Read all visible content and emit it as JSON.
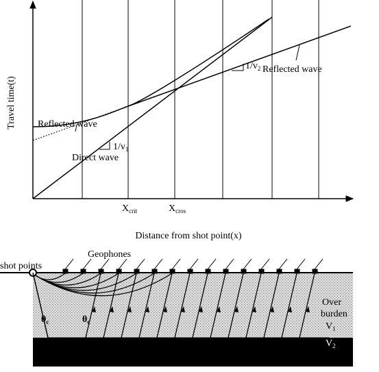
{
  "plot": {
    "y_axis_label": "Travel time(t)",
    "x_axis_label": "Distance from shot point(x)",
    "curve_labels": [
      "Reflected wave",
      "Reflected wave",
      "Direct wave"
    ],
    "slopes": [
      {
        "base": "1/v",
        "sub": "1"
      },
      {
        "base": "1/v",
        "sub": "2"
      }
    ],
    "markers": [
      {
        "base": "X",
        "sub": "crit"
      },
      {
        "base": "X",
        "sub": "cros"
      }
    ]
  },
  "section": {
    "shot_label": "shot points",
    "geophone_label": "Geophones",
    "angles": [
      {
        "base": "θ",
        "sub": "c"
      },
      {
        "base": "θ",
        "sub": "c"
      }
    ],
    "layer_label_lines": [
      "Over",
      "burden"
    ],
    "velocities": [
      {
        "base": "V",
        "sub": "1"
      },
      {
        "base": "V",
        "sub": "2"
      }
    ]
  }
}
